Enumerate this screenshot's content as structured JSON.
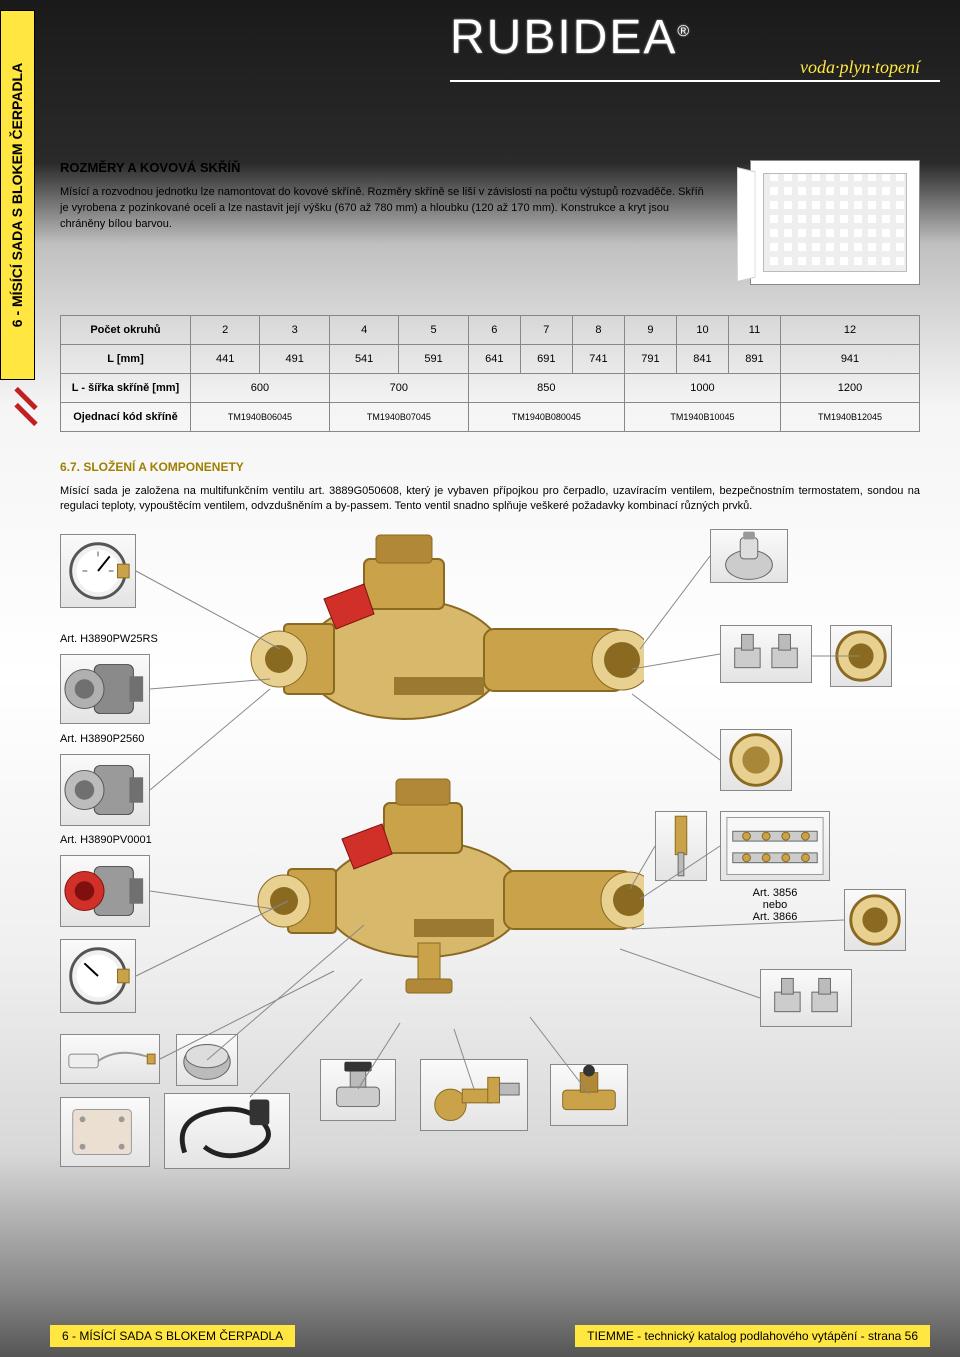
{
  "brand": "RUBIDEA",
  "tagline": "voda·plyn·topení",
  "side_tab": "6 - MÍSÍCÍ SADA S BLOKEM ČERPADLA",
  "intro": {
    "heading": "ROZMĚRY A KOVOVÁ SKŘÍŇ",
    "p": "Mísící a rozvodnou jednotku lze namontovat do kovové skříně. Rozměry skříně se liší v závislosti na počtu výstupů rozvaděče. Skříň je vyrobena z pozinkované oceli a lze nastavit její výšku (670 až 780 mm) a hloubku (120 až 170 mm). Konstrukce a kryt jsou chráněny bílou barvou."
  },
  "table": {
    "rows_hdr": [
      "Počet okruhů",
      "L [mm]",
      "L - šířka skříně [mm]",
      "Ojednací kód skříně"
    ],
    "cols_okruh": [
      "2",
      "3",
      "4",
      "5",
      "6",
      "7",
      "8",
      "9",
      "10",
      "11",
      "12"
    ],
    "l_mm": [
      "441",
      "491",
      "541",
      "591",
      "641",
      "691",
      "741",
      "791",
      "841",
      "891",
      "941"
    ],
    "sirka": [
      {
        "span": 2,
        "v": "600"
      },
      {
        "span": 2,
        "v": "700"
      },
      {
        "span": 3,
        "v": "850"
      },
      {
        "span": 3,
        "v": "1000"
      },
      {
        "span": 1,
        "v": "1200"
      }
    ],
    "kod": [
      {
        "span": 2,
        "v": "TM1940B06045"
      },
      {
        "span": 2,
        "v": "TM1940B07045"
      },
      {
        "span": 3,
        "v": "TM1940B080045"
      },
      {
        "span": 3,
        "v": "TM1940B10045"
      },
      {
        "span": 1,
        "v": "TM1940B12045"
      }
    ]
  },
  "section67": {
    "title": "6.7. SLOŽENÍ A KOMPONENETY",
    "text": "Mísící sada je založena na multifunkčním ventilu art. 3889G050608, který je vybaven přípojkou pro čerpadlo, uzavíracím ventilem, bezpečnostním termostatem, sondou na regulaci teploty, vypouštěcím ventilem, odvzdušněním a by-passem. Tento ventil snadno splňuje veškeré požadavky kombinací různých prvků."
  },
  "art_labels": {
    "a1": "Art. H3890PW25RS",
    "a2": "Art. H3890P2560",
    "a3": "Art. H3890PV0001",
    "a4": "Art. 3856\nnebo\nArt. 3866"
  },
  "footer": {
    "left": "6 - MÍSÍCÍ SADA S BLOKEM ČERPADLA",
    "right": "TIEMME - technický katalog podlahového vytápění - strana 56"
  },
  "colors": {
    "accent": "#ffe640",
    "brass": "#c9a24a",
    "brass_dark": "#8a6a20",
    "red": "#d03028",
    "steel": "#b0b0b0",
    "steel_dark": "#707070"
  }
}
